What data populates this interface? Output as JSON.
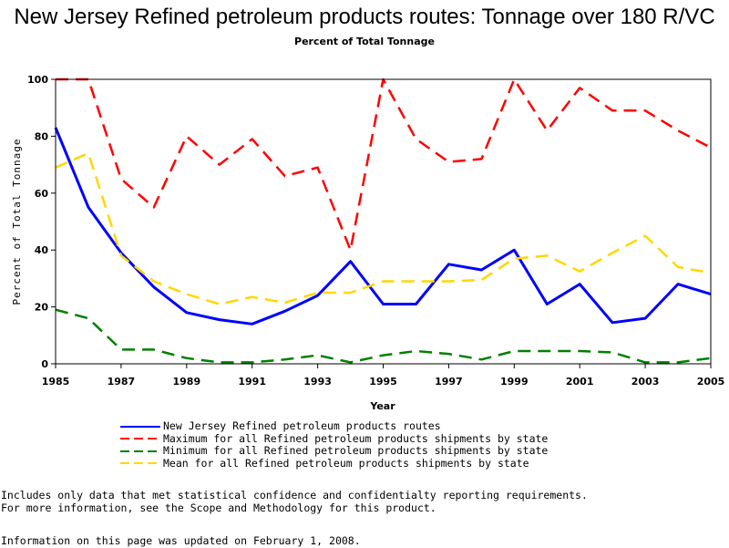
{
  "chart_data": {
    "type": "line",
    "title": "New Jersey Refined petroleum products routes: Tonnage over 180 R/VC",
    "subtitle": "Percent of Total Tonnage",
    "xlabel": "Year",
    "ylabel": "Percent of Total Tonnage",
    "xlim": [
      1985,
      2005
    ],
    "ylim": [
      0,
      100
    ],
    "x_ticks": [
      "1985",
      "1987",
      "1989",
      "1991",
      "1993",
      "1995",
      "1997",
      "1999",
      "2001",
      "2003",
      "2005"
    ],
    "y_ticks": [
      "0",
      "20",
      "40",
      "60",
      "80",
      "100"
    ],
    "x": [
      1985,
      1986,
      1987,
      1988,
      1989,
      1990,
      1991,
      1992,
      1993,
      1994,
      1995,
      1996,
      1997,
      1998,
      1999,
      2000,
      2001,
      2002,
      2003,
      2004,
      2005
    ],
    "series": [
      {
        "name": "New Jersey Refined petroleum products routes",
        "color": "#0000ff",
        "style": "solid",
        "values": [
          83,
          55,
          39,
          27,
          18,
          15.5,
          14,
          18.5,
          24,
          36,
          21,
          21,
          35,
          33,
          40,
          21,
          28,
          14.5,
          16,
          28,
          24.5
        ]
      },
      {
        "name": "Maximum for all Refined petroleum products shipments by state",
        "color": "#ff0000",
        "style": "dashed",
        "values": [
          100,
          100,
          65,
          55,
          80,
          70,
          79,
          66,
          69,
          40,
          100,
          79,
          71,
          72,
          100,
          82,
          97,
          89,
          89,
          82,
          76
        ]
      },
      {
        "name": "Minimum for all Refined petroleum products shipments by state",
        "color": "#008000",
        "style": "dashed",
        "values": [
          19,
          16,
          5,
          5,
          2,
          0.5,
          0.5,
          1.5,
          3,
          0.5,
          3,
          4.5,
          3.5,
          1.5,
          4.5,
          4.5,
          4.5,
          4,
          0.5,
          0.5,
          2
        ]
      },
      {
        "name": "Mean for all Refined petroleum products shipments by state",
        "color": "#ffd700",
        "style": "dashed",
        "values": [
          69,
          74,
          38,
          29,
          24.5,
          21,
          23.5,
          21.5,
          25,
          25,
          29,
          29,
          29,
          29.5,
          37,
          38,
          32.5,
          39,
          45,
          34,
          32
        ]
      }
    ],
    "grid": false,
    "legend_position": "bottom-left"
  },
  "notes": {
    "line1": "Includes only data that met statistical confidence and confidentialty reporting requirements.",
    "line2": "For more information, see the Scope and Methodology for this product."
  },
  "updated": "Information on this page was updated on February 1, 2008."
}
